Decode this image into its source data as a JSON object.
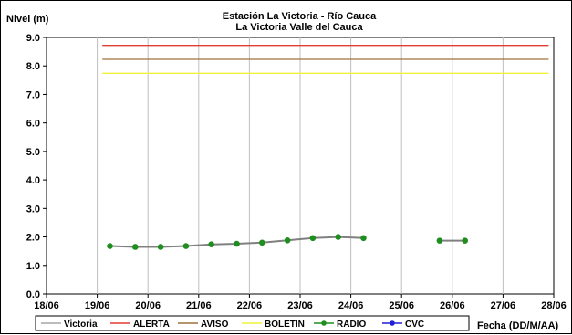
{
  "chart_data": {
    "type": "line",
    "title": "Estación La Victoria - Río Cauca",
    "subtitle": "La Victoria Valle del Cauca",
    "ylabel": "Nivel (m)",
    "xlabel": "Fecha (DD/M/AA)",
    "ylim": [
      0,
      9
    ],
    "yticks": [
      "0.0",
      "1.0",
      "2.0",
      "3.0",
      "4.0",
      "5.0",
      "6.0",
      "7.0",
      "8.0",
      "9.0"
    ],
    "xlim": [
      0,
      10
    ],
    "xticks": [
      "18/06",
      "19/06",
      "20/06",
      "21/06",
      "22/06",
      "23/06",
      "24/06",
      "25/06",
      "26/06",
      "27/06",
      "28/06"
    ],
    "grid": "vertical",
    "legend_position": "bottom",
    "series": [
      {
        "name": "Victoria",
        "color": "#a6a6a6",
        "marker": "none",
        "points": []
      },
      {
        "name": "ALERTA",
        "color": "#e03c31",
        "marker": "none",
        "points": [
          [
            1.1,
            8.72
          ],
          [
            9.9,
            8.72
          ]
        ]
      },
      {
        "name": "AVISO",
        "color": "#a0703a",
        "marker": "none",
        "points": [
          [
            1.1,
            8.23
          ],
          [
            9.9,
            8.23
          ]
        ]
      },
      {
        "name": "BOLETIN",
        "color": "#f2f23a",
        "marker": "none",
        "points": [
          [
            1.1,
            7.74
          ],
          [
            9.9,
            7.74
          ]
        ]
      },
      {
        "name": "RADIO",
        "color": "#1e8f1e",
        "line_color": "#808080",
        "marker": "circle",
        "segments": [
          [
            [
              1.25,
              1.68
            ],
            [
              1.75,
              1.65
            ],
            [
              2.25,
              1.65
            ],
            [
              2.75,
              1.68
            ],
            [
              3.25,
              1.74
            ],
            [
              3.75,
              1.76
            ],
            [
              4.25,
              1.8
            ],
            [
              4.75,
              1.88
            ],
            [
              5.25,
              1.96
            ],
            [
              5.75,
              2.0
            ],
            [
              6.25,
              1.96
            ]
          ],
          [
            [
              7.75,
              1.87
            ],
            [
              8.25,
              1.87
            ]
          ]
        ]
      },
      {
        "name": "CVC",
        "color": "#1f1fd6",
        "marker": "circle",
        "points": []
      }
    ]
  }
}
